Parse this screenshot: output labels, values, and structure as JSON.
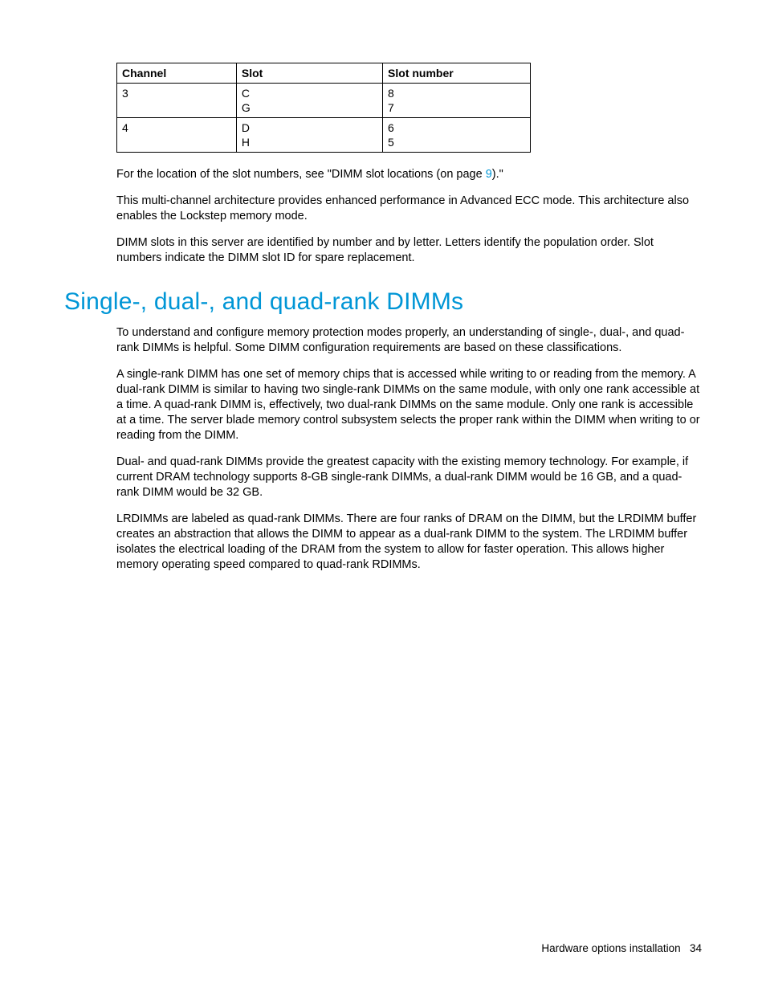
{
  "table": {
    "headers": [
      "Channel",
      "Slot",
      "Slot number"
    ],
    "rows": [
      {
        "channel": "3",
        "slot": "C\nG",
        "slotnum": "8\n7"
      },
      {
        "channel": "4",
        "slot": "D\nH",
        "slotnum": "6\n5"
      }
    ]
  },
  "para_location_before": "For the location of the slot numbers, see \"DIMM slot locations (on page ",
  "para_location_link": "9",
  "para_location_after": ").\"",
  "para_arch": "This multi-channel architecture provides enhanced performance in Advanced ECC mode. This architecture also enables the Lockstep memory mode.",
  "para_slots": "DIMM slots in this server are identified by number and by letter. Letters identify the population order. Slot numbers indicate the DIMM slot ID for spare replacement.",
  "heading": "Single-, dual-, and quad-rank DIMMs",
  "para_intro": "To understand and configure memory protection modes properly, an understanding of single-, dual-, and quad-rank DIMMs is helpful. Some DIMM configuration requirements are based on these classifications.",
  "para_single": "A single-rank DIMM has one set of memory chips that is accessed while writing to or reading from the memory. A dual-rank DIMM is similar to having two single-rank DIMMs on the same module, with only one rank accessible at a time. A quad-rank DIMM is, effectively, two dual-rank DIMMs on the same module. Only one rank is accessible at a time. The server blade memory control subsystem selects the proper rank within the DIMM when writing to or reading from the DIMM.",
  "para_dual": "Dual- and quad-rank DIMMs provide the greatest capacity with the existing memory technology. For example, if current DRAM technology supports 8-GB single-rank DIMMs, a dual-rank DIMM would be 16 GB, and a quad-rank DIMM would be 32 GB.",
  "para_lrdimm": "LRDIMMs are labeled as quad-rank DIMMs. There are four ranks of DRAM on the DIMM, but the LRDIMM buffer creates an abstraction that allows the DIMM to appear as a dual-rank DIMM to the system. The LRDIMM buffer isolates the electrical loading of the DRAM from the system to allow for faster operation. This allows higher memory operating speed compared to quad-rank RDIMMs.",
  "footer_text": "Hardware options installation",
  "page_number": "34"
}
